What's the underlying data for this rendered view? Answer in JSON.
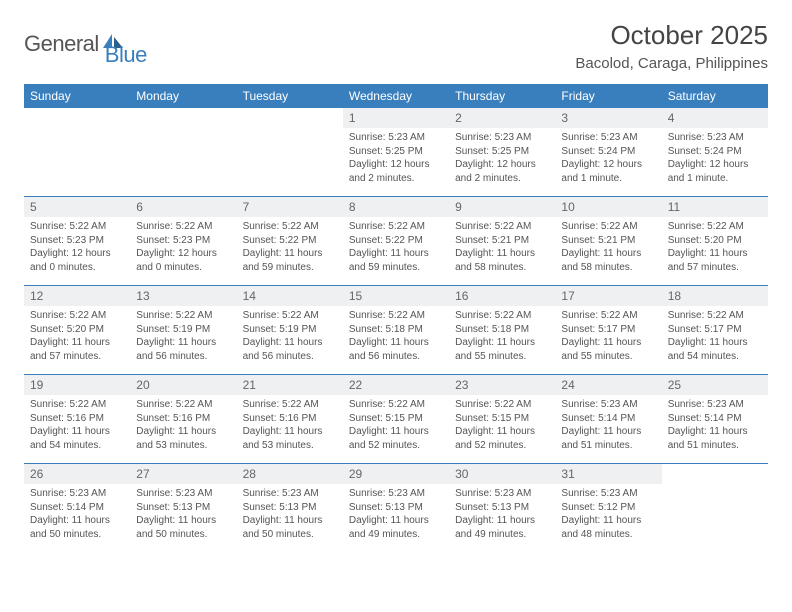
{
  "logo": {
    "text1": "General",
    "text2": "Blue",
    "text1_color": "#555555",
    "text2_color": "#3a7fbd",
    "icon_color": "#3a7fbd"
  },
  "title": "October 2025",
  "location": "Bacolod, Caraga, Philippines",
  "header_bg": "#3a7fbd",
  "daynum_bg": "#eef0f1",
  "border_color": "#3a7fbd",
  "day_names": [
    "Sunday",
    "Monday",
    "Tuesday",
    "Wednesday",
    "Thursday",
    "Friday",
    "Saturday"
  ],
  "weeks": [
    [
      null,
      null,
      null,
      {
        "n": "1",
        "sr": "5:23 AM",
        "ss": "5:25 PM",
        "dl": "12 hours and 2 minutes."
      },
      {
        "n": "2",
        "sr": "5:23 AM",
        "ss": "5:25 PM",
        "dl": "12 hours and 2 minutes."
      },
      {
        "n": "3",
        "sr": "5:23 AM",
        "ss": "5:24 PM",
        "dl": "12 hours and 1 minute."
      },
      {
        "n": "4",
        "sr": "5:23 AM",
        "ss": "5:24 PM",
        "dl": "12 hours and 1 minute."
      }
    ],
    [
      {
        "n": "5",
        "sr": "5:22 AM",
        "ss": "5:23 PM",
        "dl": "12 hours and 0 minutes."
      },
      {
        "n": "6",
        "sr": "5:22 AM",
        "ss": "5:23 PM",
        "dl": "12 hours and 0 minutes."
      },
      {
        "n": "7",
        "sr": "5:22 AM",
        "ss": "5:22 PM",
        "dl": "11 hours and 59 minutes."
      },
      {
        "n": "8",
        "sr": "5:22 AM",
        "ss": "5:22 PM",
        "dl": "11 hours and 59 minutes."
      },
      {
        "n": "9",
        "sr": "5:22 AM",
        "ss": "5:21 PM",
        "dl": "11 hours and 58 minutes."
      },
      {
        "n": "10",
        "sr": "5:22 AM",
        "ss": "5:21 PM",
        "dl": "11 hours and 58 minutes."
      },
      {
        "n": "11",
        "sr": "5:22 AM",
        "ss": "5:20 PM",
        "dl": "11 hours and 57 minutes."
      }
    ],
    [
      {
        "n": "12",
        "sr": "5:22 AM",
        "ss": "5:20 PM",
        "dl": "11 hours and 57 minutes."
      },
      {
        "n": "13",
        "sr": "5:22 AM",
        "ss": "5:19 PM",
        "dl": "11 hours and 56 minutes."
      },
      {
        "n": "14",
        "sr": "5:22 AM",
        "ss": "5:19 PM",
        "dl": "11 hours and 56 minutes."
      },
      {
        "n": "15",
        "sr": "5:22 AM",
        "ss": "5:18 PM",
        "dl": "11 hours and 56 minutes."
      },
      {
        "n": "16",
        "sr": "5:22 AM",
        "ss": "5:18 PM",
        "dl": "11 hours and 55 minutes."
      },
      {
        "n": "17",
        "sr": "5:22 AM",
        "ss": "5:17 PM",
        "dl": "11 hours and 55 minutes."
      },
      {
        "n": "18",
        "sr": "5:22 AM",
        "ss": "5:17 PM",
        "dl": "11 hours and 54 minutes."
      }
    ],
    [
      {
        "n": "19",
        "sr": "5:22 AM",
        "ss": "5:16 PM",
        "dl": "11 hours and 54 minutes."
      },
      {
        "n": "20",
        "sr": "5:22 AM",
        "ss": "5:16 PM",
        "dl": "11 hours and 53 minutes."
      },
      {
        "n": "21",
        "sr": "5:22 AM",
        "ss": "5:16 PM",
        "dl": "11 hours and 53 minutes."
      },
      {
        "n": "22",
        "sr": "5:22 AM",
        "ss": "5:15 PM",
        "dl": "11 hours and 52 minutes."
      },
      {
        "n": "23",
        "sr": "5:22 AM",
        "ss": "5:15 PM",
        "dl": "11 hours and 52 minutes."
      },
      {
        "n": "24",
        "sr": "5:23 AM",
        "ss": "5:14 PM",
        "dl": "11 hours and 51 minutes."
      },
      {
        "n": "25",
        "sr": "5:23 AM",
        "ss": "5:14 PM",
        "dl": "11 hours and 51 minutes."
      }
    ],
    [
      {
        "n": "26",
        "sr": "5:23 AM",
        "ss": "5:14 PM",
        "dl": "11 hours and 50 minutes."
      },
      {
        "n": "27",
        "sr": "5:23 AM",
        "ss": "5:13 PM",
        "dl": "11 hours and 50 minutes."
      },
      {
        "n": "28",
        "sr": "5:23 AM",
        "ss": "5:13 PM",
        "dl": "11 hours and 50 minutes."
      },
      {
        "n": "29",
        "sr": "5:23 AM",
        "ss": "5:13 PM",
        "dl": "11 hours and 49 minutes."
      },
      {
        "n": "30",
        "sr": "5:23 AM",
        "ss": "5:13 PM",
        "dl": "11 hours and 49 minutes."
      },
      {
        "n": "31",
        "sr": "5:23 AM",
        "ss": "5:12 PM",
        "dl": "11 hours and 48 minutes."
      },
      null
    ]
  ],
  "labels": {
    "sunrise": "Sunrise:",
    "sunset": "Sunset:",
    "daylight": "Daylight:"
  }
}
